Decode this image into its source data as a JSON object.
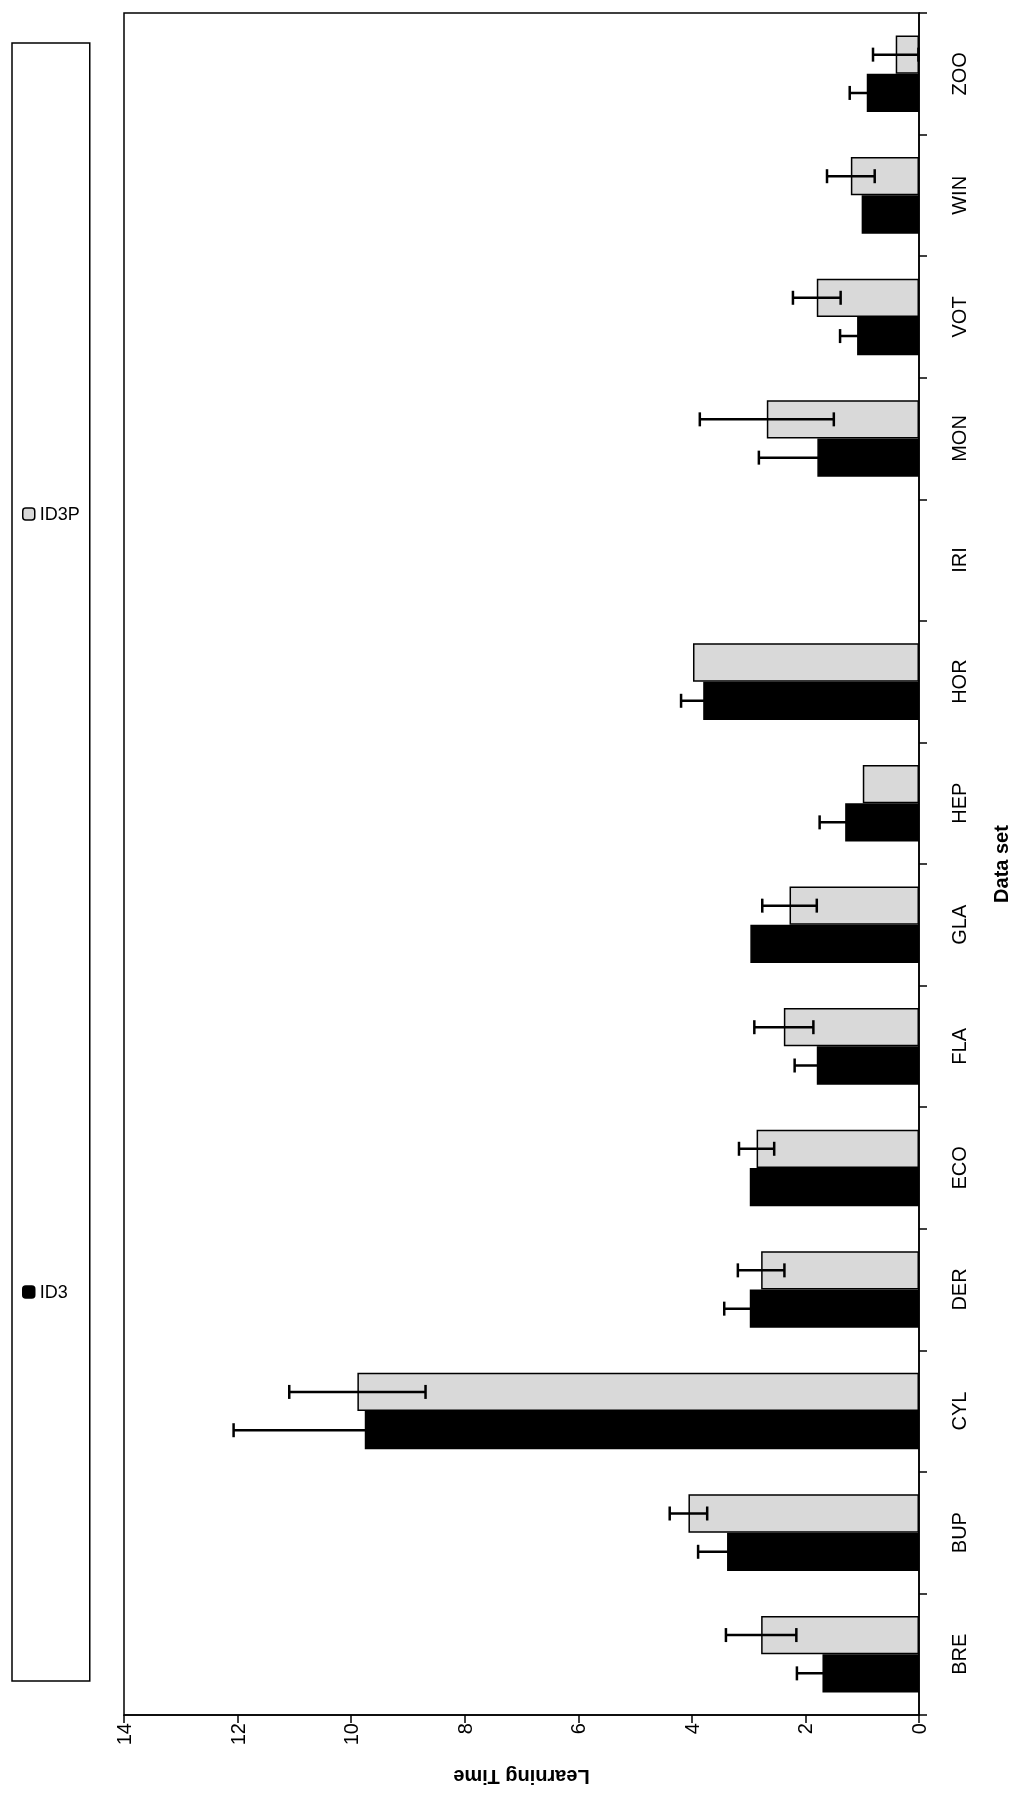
{
  "chart_data": {
    "type": "bar",
    "orientation": "horizontal",
    "xlabel": "Learning Time",
    "ylabel": "Data set",
    "categories": [
      "ZOO",
      "WIN",
      "VOT",
      "MON",
      "IRI",
      "HOR",
      "HEP",
      "GLA",
      "FLA",
      "ECO",
      "DER",
      "CYL",
      "BUP",
      "BRE"
    ],
    "series": [
      {
        "name": "ID3",
        "color": "#000000",
        "values": [
          0.92,
          1.01,
          1.09,
          1.79,
          null,
          3.8,
          1.3,
          2.97,
          1.8,
          2.98,
          2.98,
          9.76,
          3.38,
          1.7
        ],
        "errors": [
          0.3,
          null,
          0.3,
          1.03,
          null,
          0.39,
          0.45,
          null,
          0.39,
          null,
          0.45,
          2.31,
          0.51,
          0.45
        ]
      },
      {
        "name": "ID3P",
        "color": "#d9d9d9",
        "values": [
          0.41,
          1.2,
          1.8,
          2.68,
          null,
          3.98,
          0.99,
          2.28,
          2.38,
          2.86,
          2.78,
          9.89,
          4.06,
          2.78
        ],
        "errors": [
          0.4,
          0.42,
          0.42,
          1.18,
          null,
          null,
          null,
          0.48,
          0.52,
          0.31,
          0.41,
          1.2,
          0.33,
          0.62
        ]
      }
    ],
    "xlim": [
      14,
      0
    ],
    "xticks": [
      14,
      12,
      10,
      8,
      6,
      4,
      2,
      0
    ],
    "grid": false,
    "legend": "left"
  }
}
